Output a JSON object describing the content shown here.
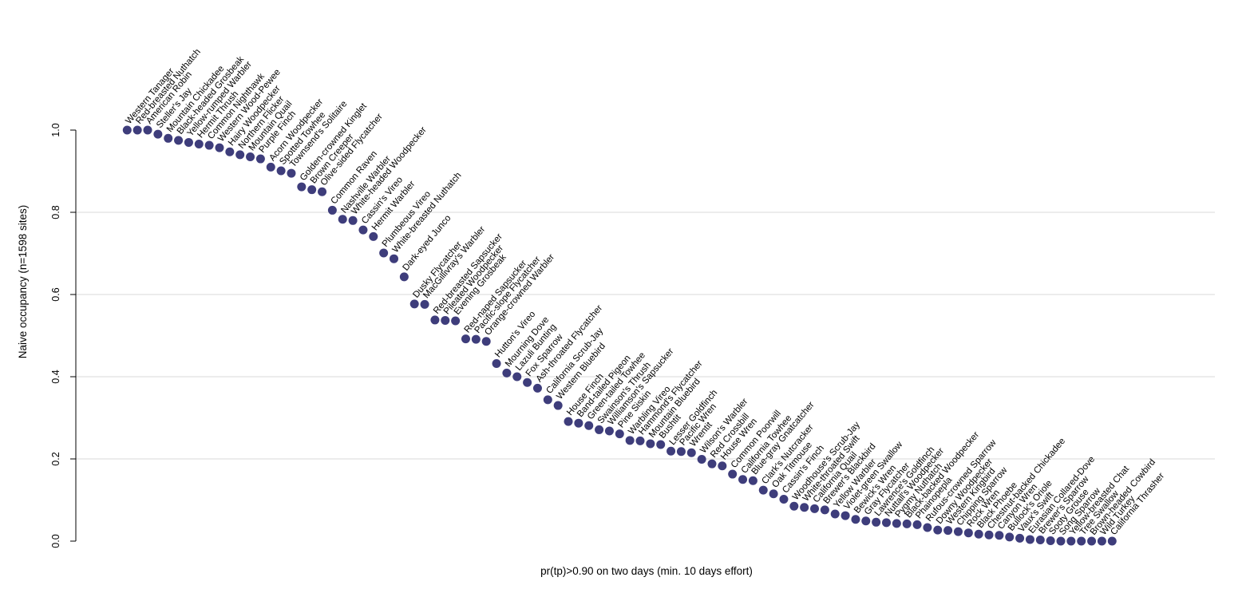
{
  "figure": {
    "background": "#ffffff",
    "axis_color": "#000000",
    "gridline_color": "#d8d8d8",
    "point_color": "#3e3d7b",
    "label_color": "#000000"
  },
  "chart_data": {
    "type": "scatter",
    "title": "",
    "xlabel": "pr(tp)>0.90 on two days (min. 10 days effort)",
    "ylabel": "Naive occupancy (n=1598 sites)",
    "n_sites": 1598,
    "x_axis": "species rank (evenly spaced, no ticks shown)",
    "ylim": [
      0.0,
      1.0
    ],
    "yticks": [
      0.0,
      0.2,
      0.4,
      0.6,
      0.8,
      1.0
    ],
    "ytick_labels": [
      "0.0",
      "0.2",
      "0.4",
      "0.6",
      "0.8",
      "1.0"
    ],
    "grid": "horizontal gridlines at 0.2, 0.4, 0.6, 0.8",
    "legend": "none",
    "point_color": "#3e3d7b",
    "categories": [
      "Western Tanager",
      "Red-breasted Nuthatch",
      "American Robin",
      "Steller's Jay",
      "Mountain Chickadee",
      "Black-headed Grosbeak",
      "Yellow-rumped Warbler",
      "Hermit Thrush",
      "Common Nighthawk",
      "Western Wood-Pewee",
      "Hairy Woodpecker",
      "Northern Flicker",
      "Mountain Quail",
      "Purple Finch",
      "Acorn Woodpecker",
      "Spotted Towhee",
      "Townsend's Solitaire",
      "Golden-crowned Kinglet",
      "Brown Creeper",
      "Olive-sided Flycatcher",
      "Common Raven",
      "Nashville Warbler",
      "White-headed Woodpecker",
      "Cassin's Vireo",
      "Hermit Warbler",
      "Plumbeous Vireo",
      "White-breasted Nuthatch",
      "Dark-eyed Junco",
      "Dusky Flycatcher",
      "MacGillivray's Warbler",
      "Red-breasted Sapsucker",
      "Pileated Woodpecker",
      "Evening Grosbeak",
      "Red-naped Sapsucker",
      "Pacific-slope Flycatcher",
      "Orange-crowned Warbler",
      "Hutton's Vireo",
      "Mourning Dove",
      "Lazuli Bunting",
      "Fox Sparrow",
      "Ash-throated Flycatcher",
      "California Scrub-Jay",
      "Western Bluebird",
      "House Finch",
      "Band-tailed Pigeon",
      "Green-tailed Towhee",
      "Swainson's Thrush",
      "Williamson's Sapsucker",
      "Pine Siskin",
      "Warbling Vireo",
      "Hammond's Flycatcher",
      "Mountain Bluebird",
      "Bushtit",
      "Lesser Goldfinch",
      "Pacific Wren",
      "Wrentit",
      "Wilson's Warbler",
      "Red Crossbill",
      "House Wren",
      "Common Poorwill",
      "California Towhee",
      "Blue-gray Gnatcatcher",
      "Clark's Nutcracker",
      "Oak Titmouse",
      "Cassin's Finch",
      "Woodhouse's Scrub-Jay",
      "White-throated Swift",
      "California Quail",
      "Brewer's Blackbird",
      "Yellow Warbler",
      "Violet-green Swallow",
      "Bewick's Wren",
      "Gray Flycatcher",
      "Lawrence's Goldfinch",
      "Nuttall's Woodpecker",
      "Pygmy Nuthatch",
      "Black-backed Woodpecker",
      "Phainopepla",
      "Rufous-crowned Sparrow",
      "Downy Woodpecker",
      "Western Kingbird",
      "Chipping Sparrow",
      "Rock Wren",
      "Black Phoebe",
      "Chestnut-backed Chickadee",
      "Canyon Wren",
      "Bullock's Oriole",
      "Vaux's Swift",
      "Eurasian Collared-Dove",
      "Brewer's Sparrow",
      "Sooty Grouse",
      "Song Sparrow",
      "Yellow-breasted Chat",
      "Tree Swallow",
      "Brown-headed Cowbird",
      "Wild Turkey",
      "California Thrasher"
    ],
    "values": [
      1.0,
      1.0,
      1.0,
      0.99,
      0.98,
      0.975,
      0.97,
      0.966,
      0.963,
      0.957,
      0.947,
      0.94,
      0.935,
      0.93,
      0.91,
      0.901,
      0.895,
      0.862,
      0.855,
      0.85,
      0.805,
      0.783,
      0.78,
      0.757,
      0.741,
      0.701,
      0.687,
      0.643,
      0.577,
      0.576,
      0.538,
      0.537,
      0.536,
      0.492,
      0.491,
      0.486,
      0.432,
      0.409,
      0.4,
      0.386,
      0.372,
      0.344,
      0.33,
      0.291,
      0.287,
      0.281,
      0.271,
      0.268,
      0.261,
      0.245,
      0.244,
      0.237,
      0.235,
      0.219,
      0.218,
      0.215,
      0.199,
      0.188,
      0.183,
      0.163,
      0.15,
      0.147,
      0.124,
      0.115,
      0.102,
      0.085,
      0.082,
      0.079,
      0.076,
      0.066,
      0.062,
      0.053,
      0.049,
      0.046,
      0.045,
      0.043,
      0.042,
      0.04,
      0.033,
      0.027,
      0.026,
      0.023,
      0.02,
      0.017,
      0.015,
      0.014,
      0.01,
      0.007,
      0.004,
      0.003,
      0.001,
      0.0,
      0.0,
      0.0,
      0.0,
      0.0,
      0.0
    ]
  }
}
